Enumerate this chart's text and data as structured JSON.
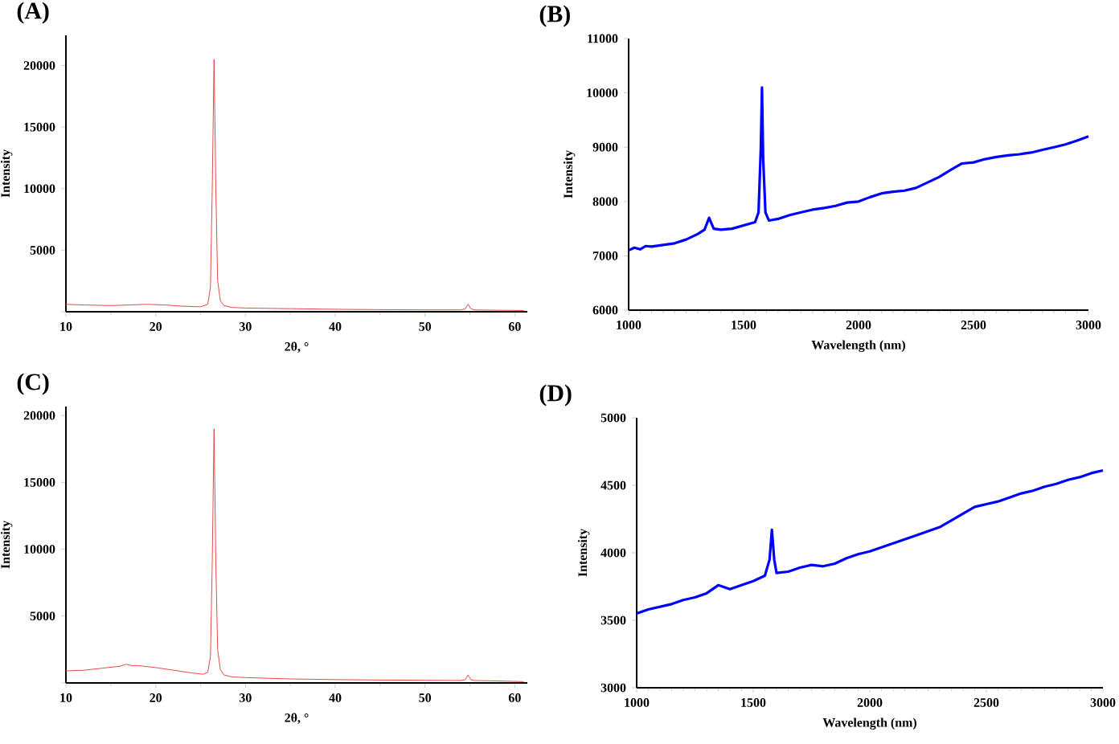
{
  "chart_data": [
    {
      "type": "line",
      "title": "(A)",
      "xlabel": "2θ, °",
      "ylabel": "Intensity",
      "xlim": [
        10,
        61.4
      ],
      "ylim": [
        0,
        22450
      ],
      "xticks": [
        10,
        20,
        30,
        40,
        50,
        60
      ],
      "yticks": [
        {
          "value": 0,
          "label": null
        },
        5000,
        10000,
        15000,
        20000
      ],
      "x": [
        10,
        12,
        15,
        17,
        19,
        21,
        23,
        25,
        25.8,
        26.1,
        26.3,
        26.5,
        26.7,
        26.9,
        27.2,
        27.6,
        28.5,
        30,
        35,
        40,
        45,
        50,
        54,
        54.5,
        54.8,
        55.1,
        55.5,
        58,
        61
      ],
      "series": [
        {
          "color": "#e8474a",
          "values": [
            600,
            550,
            500,
            550,
            600,
            550,
            450,
            400,
            600,
            2000,
            10000,
            20500,
            10000,
            2500,
            900,
            500,
            350,
            300,
            250,
            200,
            170,
            150,
            150,
            250,
            600,
            250,
            150,
            120,
            100
          ]
        }
      ]
    },
    {
      "type": "line",
      "title": "(B)",
      "xlabel": "Wavelength (nm)",
      "ylabel": "Intensity",
      "xlim": [
        1000,
        3000
      ],
      "ylim": [
        6000,
        11000
      ],
      "xticks": [
        1000,
        1500,
        2000,
        2500,
        3000
      ],
      "yticks": [
        6000,
        7000,
        8000,
        9000,
        10000,
        11000
      ],
      "x": [
        1000,
        1025,
        1050,
        1075,
        1100,
        1150,
        1200,
        1250,
        1300,
        1330,
        1350,
        1370,
        1400,
        1450,
        1500,
        1550,
        1565,
        1575,
        1580,
        1585,
        1595,
        1610,
        1650,
        1700,
        1750,
        1800,
        1850,
        1900,
        1950,
        2000,
        2050,
        2100,
        2150,
        2200,
        2250,
        2300,
        2350,
        2400,
        2450,
        2500,
        2550,
        2600,
        2650,
        2700,
        2750,
        2800,
        2850,
        2900,
        2950,
        3000
      ],
      "series": [
        {
          "color": "#0000ff",
          "values": [
            7100,
            7150,
            7120,
            7180,
            7170,
            7200,
            7230,
            7300,
            7400,
            7480,
            7700,
            7500,
            7480,
            7500,
            7560,
            7620,
            7800,
            9000,
            10100,
            8800,
            7800,
            7650,
            7680,
            7750,
            7800,
            7850,
            7880,
            7920,
            7980,
            8000,
            8080,
            8150,
            8180,
            8200,
            8250,
            8350,
            8450,
            8580,
            8700,
            8720,
            8780,
            8820,
            8850,
            8870,
            8900,
            8950,
            9000,
            9050,
            9120,
            9200
          ]
        }
      ]
    },
    {
      "type": "line",
      "title": "(C)",
      "xlabel": "2θ, °",
      "ylabel": "Intensity",
      "xlim": [
        10,
        61.4
      ],
      "ylim": [
        0,
        20670
      ],
      "xticks": [
        10,
        20,
        30,
        40,
        50,
        60
      ],
      "yticks": [
        {
          "value": 0,
          "label": null
        },
        5000,
        10000,
        15000,
        20000
      ],
      "x": [
        10,
        12,
        14,
        16,
        16.7,
        17.3,
        18,
        20,
        22,
        24,
        25.3,
        25.8,
        26.1,
        26.3,
        26.5,
        26.7,
        26.9,
        27.2,
        27.6,
        28.5,
        30,
        35,
        40,
        45,
        50,
        54,
        54.5,
        54.8,
        55.1,
        55.5,
        58,
        61
      ],
      "series": [
        {
          "color": "#e8474a",
          "values": [
            900,
            950,
            1100,
            1250,
            1400,
            1300,
            1300,
            1150,
            950,
            750,
            650,
            800,
            2000,
            9000,
            19000,
            9000,
            2500,
            1000,
            600,
            450,
            400,
            300,
            250,
            220,
            200,
            180,
            250,
            600,
            250,
            180,
            150,
            100
          ]
        }
      ]
    },
    {
      "type": "line",
      "title": "(D)",
      "xlabel": "Wavelength (nm)",
      "ylabel": "Intensity",
      "xlim": [
        1000,
        3000
      ],
      "ylim": [
        3000,
        5000
      ],
      "xticks": [
        1000,
        1500,
        2000,
        2500,
        3000
      ],
      "yticks": [
        3000,
        3500,
        4000,
        4500,
        5000
      ],
      "x": [
        1000,
        1050,
        1100,
        1150,
        1200,
        1250,
        1300,
        1350,
        1400,
        1450,
        1500,
        1550,
        1570,
        1580,
        1590,
        1600,
        1650,
        1700,
        1750,
        1800,
        1850,
        1900,
        1950,
        2000,
        2050,
        2100,
        2150,
        2200,
        2250,
        2300,
        2350,
        2400,
        2450,
        2500,
        2550,
        2600,
        2650,
        2700,
        2750,
        2800,
        2850,
        2900,
        2950,
        3000
      ],
      "series": [
        {
          "color": "#0000ff",
          "values": [
            3550,
            3580,
            3600,
            3620,
            3650,
            3670,
            3700,
            3760,
            3730,
            3760,
            3790,
            3830,
            3950,
            4170,
            3950,
            3850,
            3860,
            3890,
            3910,
            3900,
            3920,
            3960,
            3990,
            4010,
            4040,
            4070,
            4100,
            4130,
            4160,
            4190,
            4240,
            4290,
            4340,
            4360,
            4380,
            4410,
            4440,
            4460,
            4490,
            4510,
            4540,
            4560,
            4590,
            4610
          ]
        }
      ]
    }
  ]
}
